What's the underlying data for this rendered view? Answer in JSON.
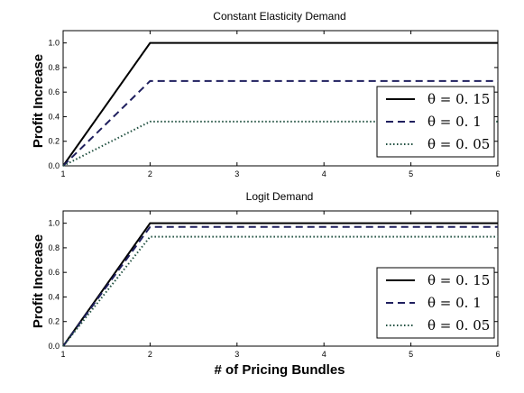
{
  "chart_data": [
    {
      "type": "line",
      "title": "Constant Elasticity Demand",
      "xlabel": "",
      "ylabel": "Profit Increase",
      "xlim": [
        1,
        6
      ],
      "ylim": [
        0,
        1.1
      ],
      "xticks": [
        "1",
        "2",
        "3",
        "4",
        "5",
        "6"
      ],
      "yticks": [
        "0.0",
        "0.2",
        "0.4",
        "0.6",
        "0.8",
        "1.0"
      ],
      "legend_position": "right",
      "x": [
        1,
        2,
        3,
        4,
        5,
        6
      ],
      "series": [
        {
          "name": "θ = 0. 15",
          "style": "solid",
          "color": "#000000",
          "values": [
            0,
            1.0,
            1.0,
            1.0,
            1.0,
            1.0
          ]
        },
        {
          "name": "θ = 0. 1",
          "style": "dashed",
          "color": "#1f1f5e",
          "values": [
            0,
            0.69,
            0.69,
            0.69,
            0.69,
            0.69
          ]
        },
        {
          "name": "θ = 0. 05",
          "style": "dotted",
          "color": "#1f4f3f",
          "values": [
            0,
            0.36,
            0.36,
            0.36,
            0.36,
            0.36
          ]
        }
      ]
    },
    {
      "type": "line",
      "title": "Logit Demand",
      "xlabel": "# of Pricing Bundles",
      "ylabel": "Profit Increase",
      "xlim": [
        1,
        6
      ],
      "ylim": [
        0,
        1.1
      ],
      "xticks": [
        "1",
        "2",
        "3",
        "4",
        "5",
        "6"
      ],
      "yticks": [
        "0.0",
        "0.2",
        "0.4",
        "0.6",
        "0.8",
        "1.0"
      ],
      "legend_position": "lower right",
      "x": [
        1,
        2,
        3,
        4,
        5,
        6
      ],
      "series": [
        {
          "name": "θ = 0. 15",
          "style": "solid",
          "color": "#000000",
          "values": [
            0,
            1.0,
            1.0,
            1.0,
            1.0,
            1.0
          ]
        },
        {
          "name": "θ = 0. 1",
          "style": "dashed",
          "color": "#1f1f5e",
          "values": [
            0,
            0.97,
            0.97,
            0.97,
            0.97,
            0.97
          ]
        },
        {
          "name": "θ = 0. 05",
          "style": "dotted",
          "color": "#1f4f3f",
          "values": [
            0,
            0.89,
            0.89,
            0.89,
            0.89,
            0.89
          ]
        }
      ]
    }
  ]
}
